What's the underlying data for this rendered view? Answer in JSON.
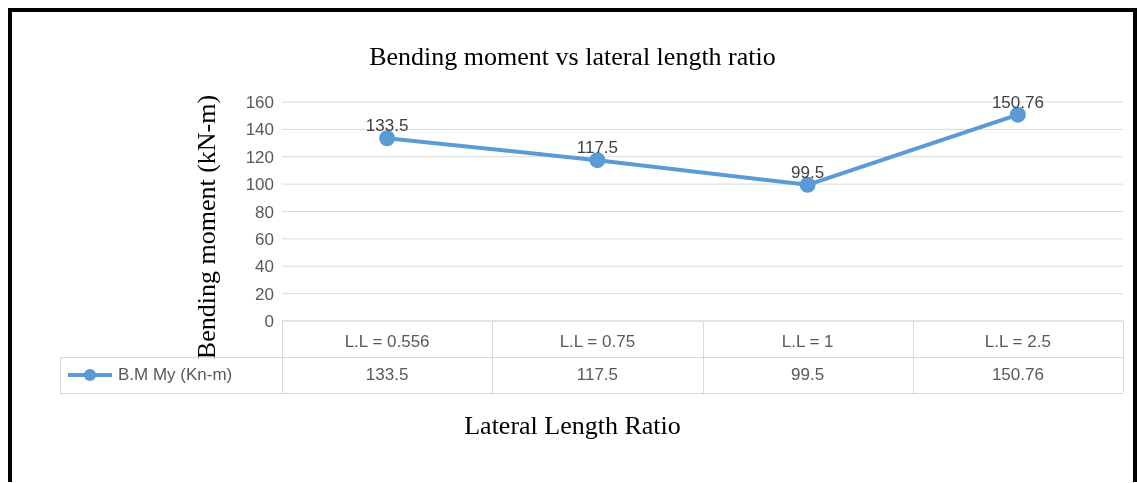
{
  "chart_data": {
    "type": "line",
    "title": "Bending moment vs lateral length ratio",
    "xlabel": "Lateral Length Ratio",
    "ylabel": "Bending moment (kN-m)",
    "categories": [
      "L.L = 0.556",
      "L.L = 0.75",
      "L.L = 1",
      "L.L = 2.5"
    ],
    "series": [
      {
        "name": "B.M My (Kn-m)",
        "color": "#5b9bd5",
        "values": [
          133.5,
          117.5,
          99.5,
          150.76
        ]
      }
    ],
    "ylim": [
      0,
      160
    ],
    "yticks": [
      0,
      20,
      40,
      60,
      80,
      100,
      120,
      140,
      160
    ],
    "grid": "y",
    "legend": "bottom",
    "marker": "circle",
    "line_style": "solid",
    "data_labels": true,
    "annotations": [
      "133.5",
      "117.5",
      "99.5",
      "150.76"
    ]
  }
}
